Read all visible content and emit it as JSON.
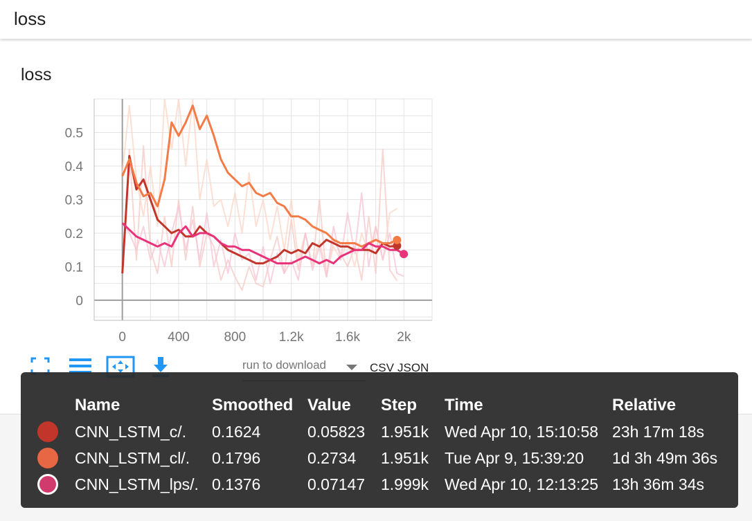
{
  "header": {
    "title": "loss"
  },
  "card": {
    "title": "loss"
  },
  "toolbar": {
    "run_select_label": "run to download",
    "csv_label": "CSV",
    "json_label": "JSON",
    "icons": [
      "fit-domain-icon",
      "log-scale-list-icon",
      "toggle-y-axis-icon",
      "download-icon"
    ]
  },
  "chart_data": {
    "type": "line",
    "title": "loss",
    "xlabel": "",
    "ylabel": "",
    "xlim": [
      -200,
      2200
    ],
    "ylim": [
      -0.06,
      0.6
    ],
    "x_ticks": [
      0,
      400,
      800,
      1200,
      1600,
      2000
    ],
    "x_tick_labels": [
      "0",
      "400",
      "800",
      "1.2k",
      "1.6k",
      "2k"
    ],
    "y_ticks": [
      0,
      0.1,
      0.2,
      0.3,
      0.4,
      0.5
    ],
    "y_tick_labels": [
      "0",
      "0.1",
      "0.2",
      "0.3",
      "0.4",
      "0.5"
    ],
    "grid": true,
    "series": [
      {
        "name": "CNN_LSTM_c/.",
        "color": "#c2352a",
        "x": [
          0,
          50,
          100,
          150,
          200,
          250,
          300,
          350,
          400,
          450,
          500,
          550,
          600,
          650,
          700,
          750,
          800,
          850,
          900,
          950,
          1000,
          1050,
          1100,
          1150,
          1200,
          1250,
          1300,
          1350,
          1400,
          1450,
          1500,
          1550,
          1600,
          1650,
          1700,
          1750,
          1800,
          1850,
          1900,
          1951
        ],
        "values": [
          0.08,
          0.43,
          0.33,
          0.36,
          0.3,
          0.24,
          0.22,
          0.2,
          0.21,
          0.19,
          0.19,
          0.22,
          0.2,
          0.19,
          0.17,
          0.15,
          0.14,
          0.13,
          0.12,
          0.11,
          0.11,
          0.12,
          0.13,
          0.15,
          0.14,
          0.15,
          0.14,
          0.17,
          0.16,
          0.18,
          0.17,
          0.16,
          0.16,
          0.15,
          0.15,
          0.15,
          0.14,
          0.17,
          0.16,
          0.1624
        ]
      },
      {
        "name": "CNN_LSTM_cl/.",
        "color": "#f47b46",
        "x": [
          0,
          50,
          100,
          150,
          200,
          250,
          300,
          350,
          400,
          450,
          500,
          550,
          600,
          650,
          700,
          750,
          800,
          850,
          900,
          950,
          1000,
          1050,
          1100,
          1150,
          1200,
          1250,
          1300,
          1350,
          1400,
          1450,
          1500,
          1550,
          1600,
          1650,
          1700,
          1750,
          1800,
          1850,
          1900,
          1951
        ],
        "values": [
          0.37,
          0.42,
          0.35,
          0.31,
          0.32,
          0.28,
          0.36,
          0.53,
          0.49,
          0.53,
          0.58,
          0.51,
          0.55,
          0.49,
          0.42,
          0.38,
          0.36,
          0.34,
          0.35,
          0.32,
          0.31,
          0.32,
          0.29,
          0.28,
          0.25,
          0.25,
          0.24,
          0.22,
          0.21,
          0.2,
          0.18,
          0.17,
          0.17,
          0.17,
          0.16,
          0.17,
          0.18,
          0.17,
          0.17,
          0.1796
        ]
      },
      {
        "name": "CNN_LSTM_lps/.",
        "color": "#e8337a",
        "x": [
          0,
          50,
          100,
          150,
          200,
          250,
          300,
          350,
          400,
          450,
          500,
          550,
          600,
          650,
          700,
          750,
          800,
          850,
          900,
          950,
          1000,
          1050,
          1100,
          1150,
          1200,
          1250,
          1300,
          1350,
          1400,
          1450,
          1500,
          1550,
          1600,
          1650,
          1700,
          1750,
          1800,
          1850,
          1900,
          1950,
          1999
        ],
        "values": [
          0.23,
          0.21,
          0.19,
          0.18,
          0.17,
          0.16,
          0.17,
          0.16,
          0.2,
          0.22,
          0.19,
          0.2,
          0.2,
          0.19,
          0.17,
          0.16,
          0.16,
          0.15,
          0.15,
          0.14,
          0.13,
          0.12,
          0.11,
          0.11,
          0.11,
          0.12,
          0.13,
          0.12,
          0.11,
          0.12,
          0.11,
          0.13,
          0.14,
          0.15,
          0.15,
          0.17,
          0.16,
          0.16,
          0.15,
          0.15,
          0.1376
        ]
      }
    ],
    "raw_series": [
      {
        "name": "CNN_LSTM_c/.",
        "color": "#f6c9c4",
        "x": [
          0,
          50,
          100,
          150,
          200,
          250,
          300,
          350,
          400,
          450,
          500,
          550,
          600,
          650,
          700,
          750,
          800,
          850,
          900,
          950,
          1000,
          1050,
          1100,
          1150,
          1200,
          1250,
          1300,
          1350,
          1400,
          1450,
          1500,
          1550,
          1600,
          1650,
          1700,
          1750,
          1800,
          1850,
          1900,
          1951
        ],
        "values": [
          0.08,
          0.45,
          0.12,
          0.46,
          0.15,
          0.08,
          0.25,
          0.1,
          0.3,
          0.12,
          0.28,
          0.1,
          0.2,
          0.16,
          0.06,
          0.12,
          0.07,
          0.03,
          0.1,
          0.05,
          0.04,
          0.12,
          0.19,
          0.08,
          0.24,
          0.09,
          0.2,
          0.1,
          0.3,
          0.07,
          0.18,
          0.14,
          0.1,
          0.16,
          0.06,
          0.25,
          0.08,
          0.45,
          0.09,
          0.05823
        ]
      },
      {
        "name": "CNN_LSTM_cl/.",
        "color": "#fcd5c6",
        "x": [
          0,
          50,
          100,
          150,
          200,
          250,
          300,
          350,
          400,
          450,
          500,
          550,
          600,
          650,
          700,
          750,
          800,
          850,
          900,
          950,
          1000,
          1050,
          1100,
          1150,
          1200,
          1250,
          1300,
          1350,
          1400,
          1450,
          1500,
          1550,
          1600,
          1650,
          1700,
          1750,
          1800,
          1850,
          1900,
          1951
        ],
        "values": [
          0.38,
          0.58,
          0.36,
          0.25,
          0.4,
          0.22,
          0.6,
          0.45,
          0.6,
          0.4,
          0.6,
          0.3,
          0.42,
          0.28,
          0.3,
          0.22,
          0.32,
          0.2,
          0.38,
          0.22,
          0.3,
          0.18,
          0.28,
          0.15,
          0.3,
          0.12,
          0.2,
          0.1,
          0.18,
          0.08,
          0.16,
          0.12,
          0.18,
          0.1,
          0.2,
          0.14,
          0.22,
          0.12,
          0.26,
          0.2734
        ]
      },
      {
        "name": "CNN_LSTM_lps/.",
        "color": "#f7c3d6",
        "x": [
          0,
          50,
          100,
          150,
          200,
          250,
          300,
          350,
          400,
          450,
          500,
          550,
          600,
          650,
          700,
          750,
          800,
          850,
          900,
          950,
          1000,
          1050,
          1100,
          1150,
          1200,
          1250,
          1300,
          1350,
          1400,
          1450,
          1500,
          1550,
          1600,
          1650,
          1700,
          1750,
          1800,
          1850,
          1900,
          1950,
          1999
        ],
        "values": [
          0.23,
          0.2,
          0.15,
          0.22,
          0.12,
          0.18,
          0.1,
          0.2,
          0.28,
          0.15,
          0.24,
          0.12,
          0.26,
          0.1,
          0.18,
          0.08,
          0.2,
          0.12,
          0.14,
          0.06,
          0.16,
          0.05,
          0.14,
          0.08,
          0.12,
          0.06,
          0.2,
          0.09,
          0.16,
          0.07,
          0.22,
          0.12,
          0.26,
          0.14,
          0.32,
          0.1,
          0.22,
          0.12,
          0.2,
          0.08,
          0.07147
        ]
      }
    ]
  },
  "tooltip": {
    "headers": {
      "name": "Name",
      "smoothed": "Smoothed",
      "value": "Value",
      "step": "Step",
      "time": "Time",
      "relative": "Relative"
    },
    "rows": [
      {
        "color": "#c2352a",
        "name": "CNN_LSTM_c/.",
        "smoothed": "0.1624",
        "value": "0.05823",
        "step": "1.951k",
        "time": "Wed Apr 10, 15:10:58",
        "relative": "23h 17m 18s"
      },
      {
        "color": "#f47b46",
        "name": "CNN_LSTM_cl/.",
        "smoothed": "0.1796",
        "value": "0.2734",
        "step": "1.951k",
        "time": "Tue Apr 9, 15:39:20",
        "relative": "1d 3h 49m 36s"
      },
      {
        "color": "#e8337a",
        "name": "CNN_LSTM_lps/.",
        "smoothed": "0.1376",
        "value": "0.07147",
        "step": "1.999k",
        "time": "Wed Apr 10, 12:13:25",
        "relative": "13h 36m 34s"
      }
    ]
  }
}
